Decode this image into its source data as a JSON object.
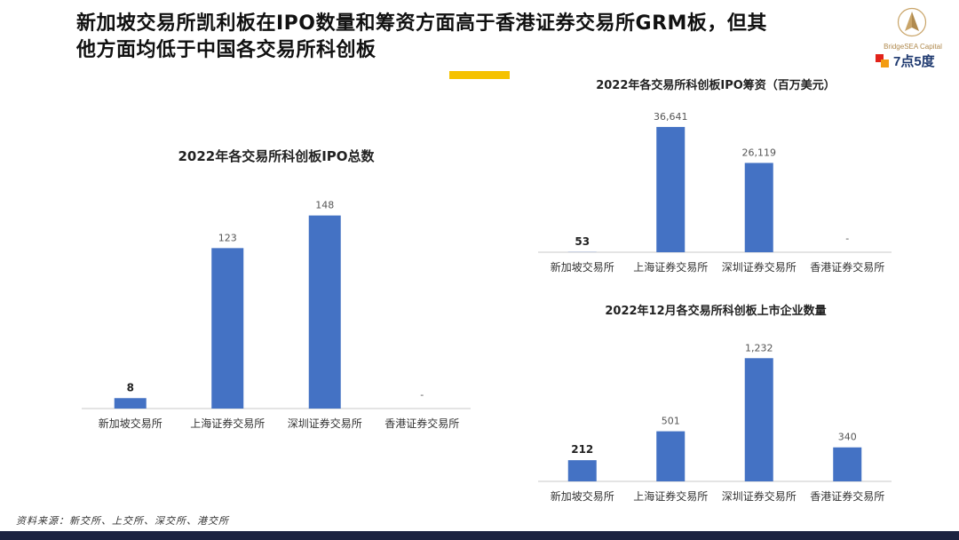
{
  "slide": {
    "title_line1": "新加坡交易所凯利板在IPO数量和筹资方面高于香港证券交易所GRM板，但其",
    "title_line2": "他方面均低于中国各交易所科创板",
    "source": "资料来源：新交所、上交所、深交所、港交所"
  },
  "logo": {
    "name": "BridgeSEA Capital",
    "sub": "7点5度"
  },
  "colors": {
    "bar": "#4472c4",
    "accent": "#f5c200",
    "footer": "#1c2340"
  },
  "chart_data": [
    {
      "type": "bar",
      "title": "2022年各交易所科创板IPO总数",
      "categories": [
        "新加坡交易所",
        "上海证券交易所",
        "深圳证券交易所",
        "香港证券交易所"
      ],
      "values": [
        8,
        123,
        148,
        0
      ],
      "value_labels": [
        "8",
        "123",
        "148",
        "-"
      ],
      "ylim": [
        0,
        160
      ],
      "grid": false,
      "legend": "none"
    },
    {
      "type": "bar",
      "title": "2022年各交易所科创板IPO筹资（百万美元）",
      "categories": [
        "新加坡交易所",
        "上海证券交易所",
        "深圳证券交易所",
        "香港证券交易所"
      ],
      "values": [
        53,
        36641,
        26119,
        0
      ],
      "value_labels": [
        "53",
        "36,641",
        "26,119",
        "-"
      ],
      "ylim": [
        0,
        40000
      ],
      "grid": false,
      "legend": "none"
    },
    {
      "type": "bar",
      "title": "2022年12月各交易所科创板上市企业数量",
      "categories": [
        "新加坡交易所",
        "上海证券交易所",
        "深圳证券交易所",
        "香港证券交易所"
      ],
      "values": [
        212,
        501,
        1232,
        340
      ],
      "value_labels": [
        "212",
        "501",
        "1,232",
        "340"
      ],
      "ylim": [
        0,
        1350
      ],
      "grid": false,
      "legend": "none"
    }
  ]
}
